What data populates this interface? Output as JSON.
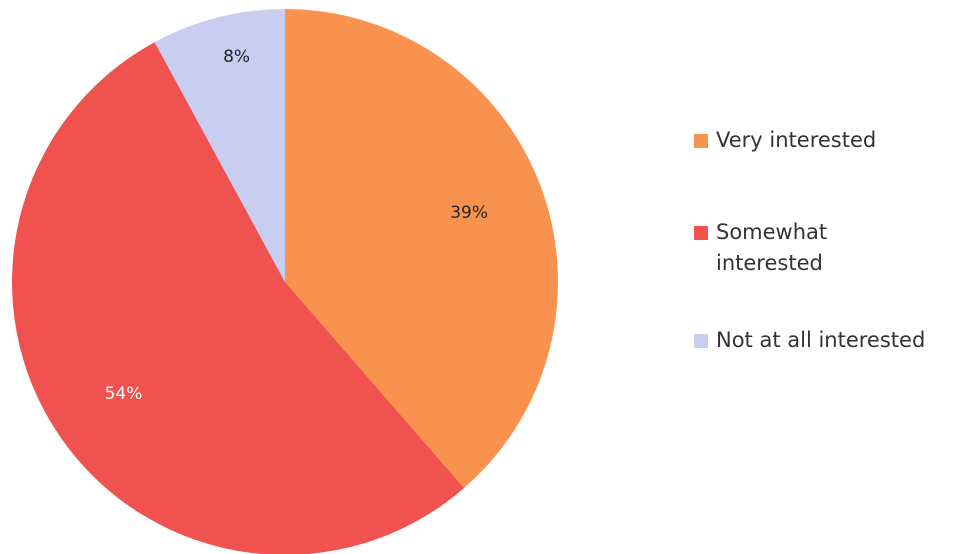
{
  "chart_data": {
    "type": "pie",
    "categories": [
      "Very interested",
      "Somewhat interested",
      "Not at all interested"
    ],
    "values": [
      39,
      54,
      8
    ],
    "value_labels": [
      "39%",
      "54%",
      "8%"
    ],
    "colors": [
      "#f9914f",
      "#f0524f",
      "#c9cef0"
    ],
    "legend": "right"
  }
}
